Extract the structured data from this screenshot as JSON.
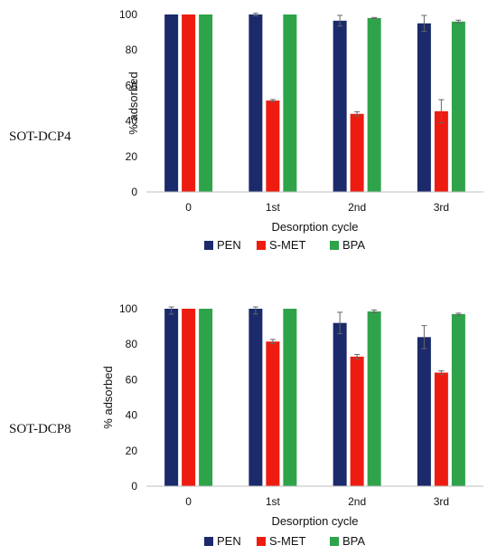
{
  "charts": [
    {
      "panel_label": "SOT-DCP4",
      "chart_data": {
        "type": "bar",
        "categories": [
          "0",
          "1st",
          "2nd",
          "3rd"
        ],
        "series": [
          {
            "name": "PEN",
            "color": "#1b2a6b",
            "values": [
              100,
              100,
              96.5,
              95
            ],
            "errors": [
              0,
              0.7,
              3,
              4.5
            ]
          },
          {
            "name": "S-MET",
            "color": "#ee1c10",
            "values": [
              100,
              51.5,
              44,
              45.5
            ],
            "errors": [
              0,
              0.6,
              1.2,
              6.5
            ]
          },
          {
            "name": "BPA",
            "color": "#2ea34a",
            "values": [
              100,
              100,
              98,
              96
            ],
            "errors": [
              0,
              0,
              0.3,
              0.8
            ]
          }
        ],
        "xlabel": "Desorption cycle",
        "ylabel": "% adsorbed",
        "ylim": [
          0,
          100
        ],
        "yticks": [
          0,
          20,
          40,
          60,
          80,
          100
        ],
        "legend": "bottom"
      }
    },
    {
      "panel_label": "SOT-DCP8",
      "chart_data": {
        "type": "bar",
        "categories": [
          "0",
          "1st",
          "2nd",
          "3rd"
        ],
        "series": [
          {
            "name": "PEN",
            "color": "#1b2a6b",
            "values": [
              100,
              100,
              92,
              84
            ],
            "errors": [
              3,
              3,
              6,
              6.5
            ]
          },
          {
            "name": "S-MET",
            "color": "#ee1c10",
            "values": [
              100,
              81.5,
              73,
              64
            ],
            "errors": [
              0,
              1.2,
              1.2,
              1
            ]
          },
          {
            "name": "BPA",
            "color": "#2ea34a",
            "values": [
              100,
              100,
              98.5,
              97
            ],
            "errors": [
              0,
              0,
              0.8,
              0.5
            ]
          }
        ],
        "xlabel": "Desorption cycle",
        "ylabel": "% adsorbed",
        "ylim": [
          0,
          100
        ],
        "yticks": [
          0,
          20,
          40,
          60,
          80,
          100
        ],
        "legend": "bottom"
      }
    }
  ]
}
